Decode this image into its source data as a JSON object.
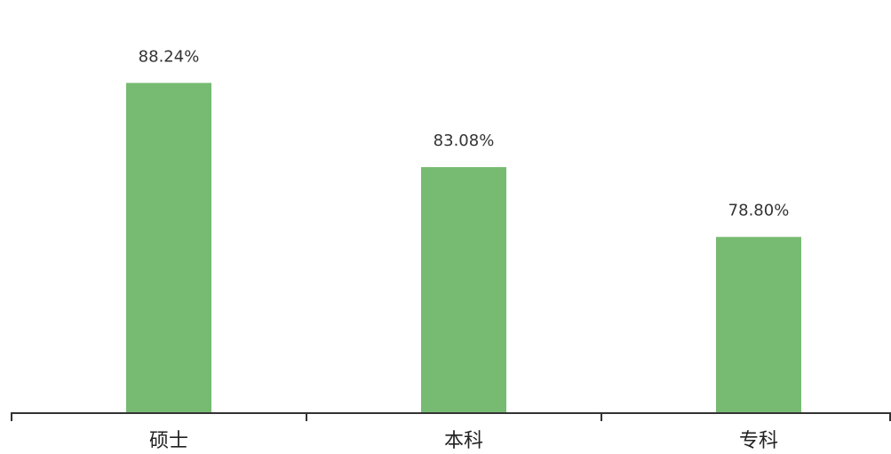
{
  "chart_data": {
    "type": "bar",
    "categories": [
      "硕士",
      "本科",
      "专科"
    ],
    "values": [
      88.24,
      83.08,
      78.8
    ],
    "value_labels": [
      "88.24%",
      "83.08%",
      "78.80%"
    ],
    "unit": "%",
    "ylim": [
      68,
      90
    ],
    "grid": false,
    "legend": "none"
  },
  "colors": {
    "bar": "#77bb72",
    "axis": "#333333"
  }
}
